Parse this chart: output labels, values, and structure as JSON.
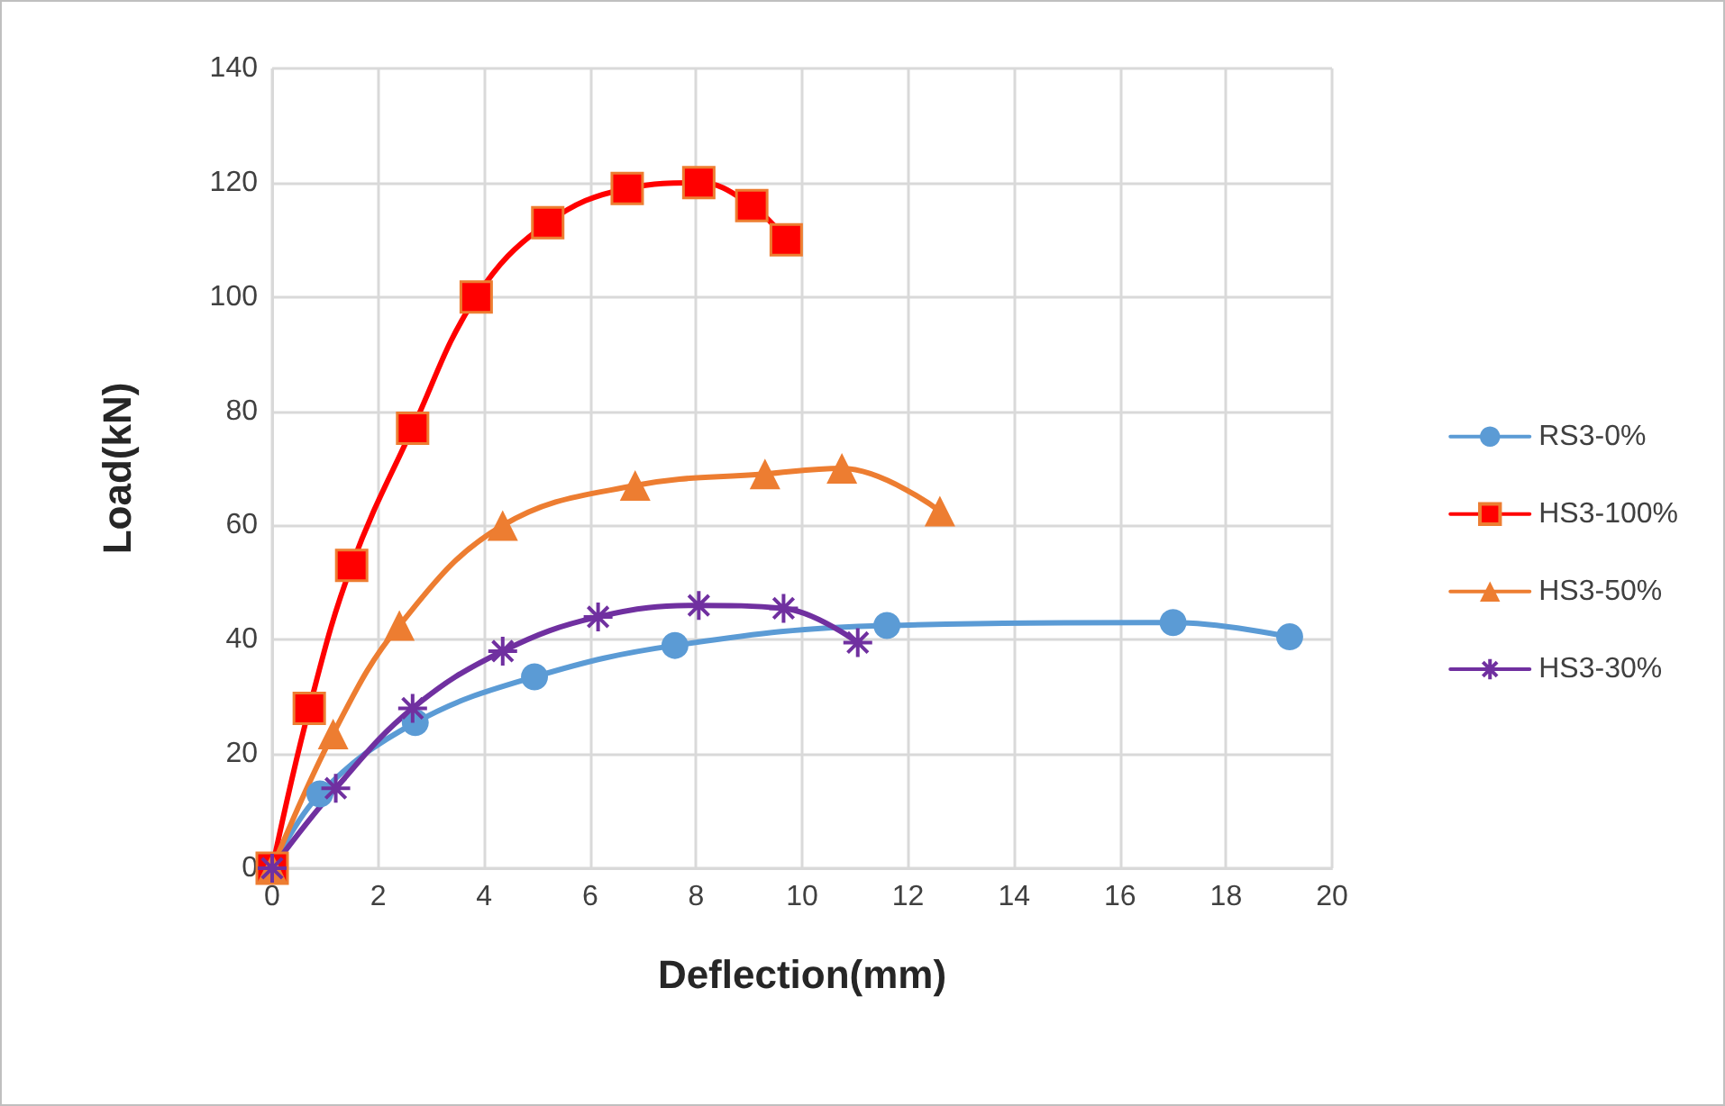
{
  "chart_data": {
    "type": "line",
    "xlabel": "Deflection(mm)",
    "ylabel": "Load(kN)",
    "xlim": [
      0,
      20
    ],
    "xticks": [
      0,
      2,
      4,
      6,
      8,
      10,
      12,
      14,
      16,
      18,
      20
    ],
    "ylim": [
      0,
      140
    ],
    "yticks": [
      0,
      20,
      40,
      60,
      80,
      100,
      120,
      140
    ],
    "grid": true,
    "legend": "right",
    "series": [
      {
        "name": "RS3-0%",
        "color": "#5b9bd5",
        "marker": "circle",
        "x": [
          0,
          0.9,
          2.7,
          4.95,
          7.6,
          11.6,
          17,
          19.2
        ],
        "values": [
          0,
          13,
          25.5,
          33.5,
          39,
          42.5,
          43,
          40.5
        ]
      },
      {
        "name": "HS3-100%",
        "color": "#ff0000",
        "marker": "square",
        "x": [
          0,
          0.7,
          1.5,
          2.65,
          3.85,
          5.2,
          6.7,
          8.05,
          9.05,
          9.7
        ],
        "values": [
          0,
          28,
          53,
          77,
          100,
          113,
          119,
          120,
          116,
          110
        ]
      },
      {
        "name": "HS3-50%",
        "color": "#ed7d31",
        "marker": "triangle",
        "x": [
          0,
          1.15,
          2.4,
          4.35,
          6.85,
          9.3,
          10.75,
          12.6
        ],
        "values": [
          0,
          23.5,
          42.5,
          60,
          67,
          69,
          70,
          62.5
        ]
      },
      {
        "name": "HS3-30%",
        "color": "#7030a0",
        "marker": "cross",
        "x": [
          0,
          1.2,
          2.65,
          4.35,
          6.15,
          8.05,
          9.65,
          11.05
        ],
        "values": [
          0,
          14,
          28,
          38,
          44,
          46,
          45.5,
          39.5
        ]
      }
    ]
  }
}
